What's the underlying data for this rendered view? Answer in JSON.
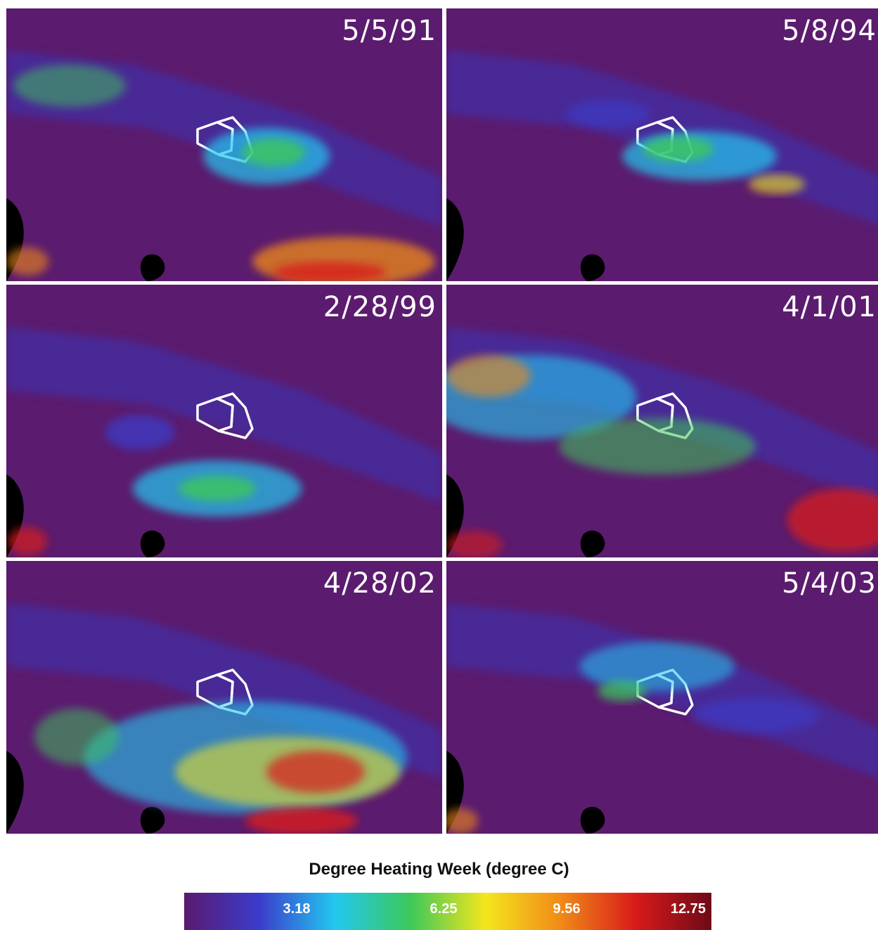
{
  "panels": [
    {
      "date": "5/5/91"
    },
    {
      "date": "5/8/94"
    },
    {
      "date": "2/28/99"
    },
    {
      "date": "4/1/01"
    },
    {
      "date": "4/28/02"
    },
    {
      "date": "5/4/03"
    }
  ],
  "legend": {
    "title": "Degree Heating Week (degree C)",
    "ticks": [
      "3.18",
      "6.25",
      "9.56",
      "12.75"
    ],
    "colors": [
      "#5a1a6e",
      "#3b3ccc",
      "#22c8f0",
      "#3cc85a",
      "#f5e61c",
      "#f08a18",
      "#d81a1a",
      "#6e0a18"
    ]
  },
  "map": {
    "background_color": "#5b1b6e",
    "land_color": "#000000",
    "outline_color": "#ffffff"
  }
}
